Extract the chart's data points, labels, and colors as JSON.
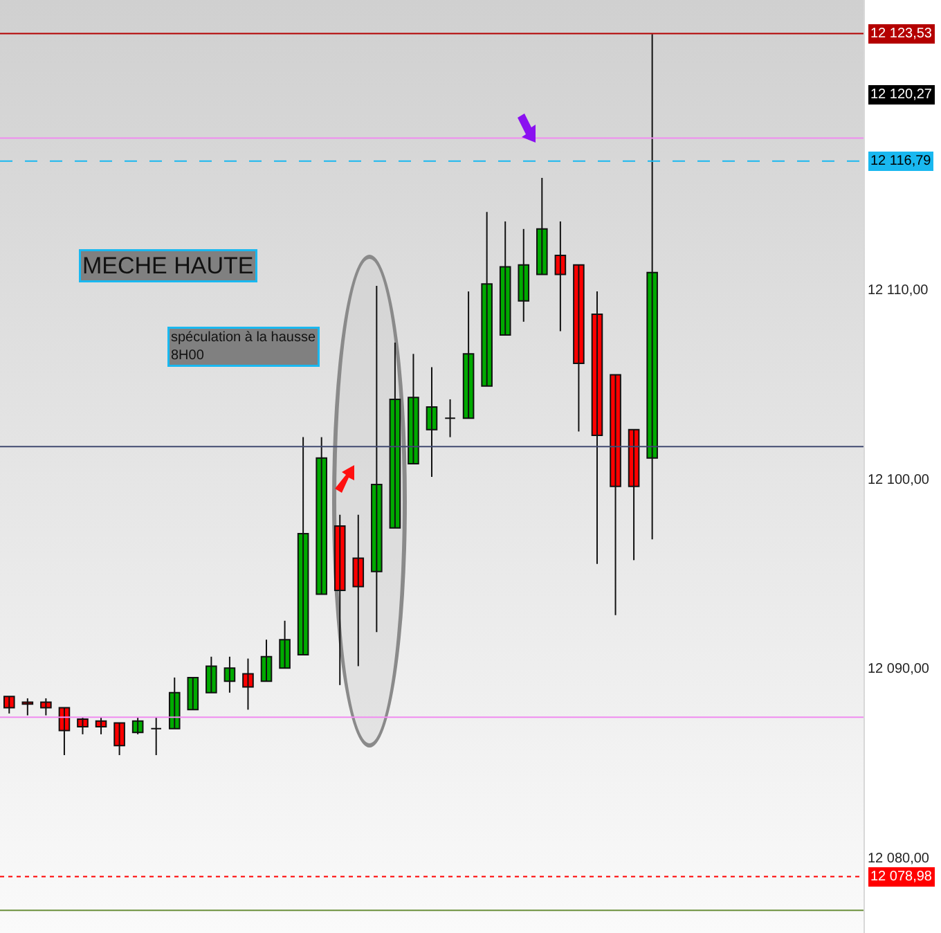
{
  "chart_data": {
    "type": "candlestick",
    "categories": [
      null,
      null,
      null,
      null,
      null,
      null,
      null,
      null,
      null,
      null,
      null,
      null,
      null,
      null,
      null,
      null,
      null,
      null,
      null,
      null,
      null,
      null,
      null,
      null,
      null,
      null,
      null,
      null,
      null,
      null,
      null,
      null,
      null,
      null,
      null,
      null,
      null,
      null,
      null,
      null,
      null,
      null,
      null,
      null,
      null,
      null,
      null
    ],
    "ohlc": [
      [
        12088.5,
        12088.5,
        12087.6,
        12087.9
      ],
      [
        12088.2,
        12088.4,
        12087.5,
        12088.1
      ],
      [
        12088.2,
        12088.4,
        12087.5,
        12087.9
      ],
      [
        12087.9,
        12087.9,
        12085.4,
        12086.7
      ],
      [
        12087.3,
        12087.4,
        12086.5,
        12086.9
      ],
      [
        12087.2,
        12087.4,
        12086.5,
        12086.9
      ],
      [
        12087.1,
        12087.1,
        12085.4,
        12085.9
      ],
      [
        12086.6,
        12087.4,
        12086.5,
        12087.2
      ],
      [
        12086.8,
        12087.4,
        12085.4,
        12086.8
      ],
      [
        12086.8,
        12089.5,
        12086.8,
        12088.7
      ],
      [
        12087.8,
        12089.5,
        12087.8,
        12089.5
      ],
      [
        12088.7,
        12090.6,
        12088.7,
        12090.1
      ],
      [
        12089.3,
        12090.6,
        12088.7,
        12090.0
      ],
      [
        12089.7,
        12090.5,
        12087.8,
        12089.0
      ],
      [
        12089.3,
        12091.5,
        12089.3,
        12090.6
      ],
      [
        12090.0,
        12092.5,
        12090.0,
        12091.5
      ],
      [
        12090.7,
        12102.2,
        12090.7,
        12097.1
      ],
      [
        12093.9,
        12102.2,
        12093.9,
        12101.1
      ],
      [
        12097.5,
        12098.1,
        12089.1,
        12094.1
      ],
      [
        12095.8,
        12098.1,
        12090.1,
        12094.3
      ],
      [
        12095.1,
        12110.2,
        12091.9,
        12099.7
      ],
      [
        12097.4,
        12107.2,
        12097.4,
        12104.2
      ],
      [
        12100.8,
        12106.6,
        12100.8,
        12104.3
      ],
      [
        12102.6,
        12105.9,
        12100.1,
        12103.8
      ],
      [
        12103.2,
        12104.2,
        12102.2,
        12103.2
      ],
      [
        12103.2,
        12109.9,
        12103.2,
        12106.6
      ],
      [
        12104.9,
        12114.1,
        12104.9,
        12110.3
      ],
      [
        12107.6,
        12113.6,
        12107.6,
        12111.2
      ],
      [
        12109.4,
        12113.2,
        12108.3,
        12111.3
      ],
      [
        12110.8,
        12115.9,
        12110.8,
        12113.2
      ],
      [
        12111.8,
        12113.6,
        12107.8,
        12110.8
      ],
      [
        12111.3,
        12111.3,
        12102.5,
        12106.1
      ],
      [
        12108.7,
        12109.9,
        12095.5,
        12102.3
      ],
      [
        12105.5,
        12105.5,
        12092.8,
        12099.6
      ],
      [
        12102.6,
        12102.6,
        12095.7,
        12099.6
      ],
      [
        12101.1,
        12123.5,
        12096.8,
        12110.9
      ],
      null,
      null,
      null,
      null,
      null,
      null,
      null,
      null,
      null,
      null,
      null
    ],
    "colors": [
      "#ff0000",
      "#ff0000",
      "#ff0000",
      "#ff0000",
      "#ff0000",
      "#ff0000",
      "#ff0000",
      "#00aa00",
      "#111111",
      "#00aa00",
      "#00aa00",
      "#00aa00",
      "#00aa00",
      "#ff0000",
      "#00aa00",
      "#00aa00",
      "#00aa00",
      "#00aa00",
      "#ff0000",
      "#ff0000",
      "#00aa00",
      "#00aa00",
      "#00aa00",
      "#00aa00",
      "#111111",
      "#00aa00",
      "#00aa00",
      "#00aa00",
      "#00aa00",
      "#00aa00",
      "#ff0000",
      "#ff0000",
      "#ff0000",
      "#ff0000",
      "#ff0000",
      "#00aa00",
      null,
      null,
      null,
      null,
      null,
      null,
      null,
      null,
      null,
      null,
      null
    ],
    "ylim": [
      12076.0,
      12125.3
    ],
    "yticks": [
      {
        "value": 12080,
        "label": "12 080,00"
      },
      {
        "value": 12090,
        "label": "12 090,00"
      },
      {
        "value": 12100,
        "label": "12 100,00"
      },
      {
        "value": 12110,
        "label": "12 110,00"
      }
    ],
    "tick_labels": "y",
    "ref_lines": [
      {
        "axis": "y",
        "value": 12123.53,
        "label": "12 123,53",
        "color": "#b40000",
        "line_style": "solid"
      },
      {
        "axis": "y",
        "value": 12116.79,
        "label": "12 116,79",
        "color": "#19b8f0",
        "line_style": "dashed"
      },
      {
        "axis": "y",
        "value": 12078.98,
        "label": "12 078,98",
        "color": "#ff0000",
        "line_style": "dotted"
      },
      {
        "axis": "y",
        "value": 12118.0,
        "color": "#f08cf0",
        "line_style": "solid"
      },
      {
        "axis": "y",
        "value": 12087.4,
        "color": "#f08cf0",
        "line_style": "solid"
      },
      {
        "axis": "y",
        "value": 12101.7,
        "color": "#404a70",
        "line_style": "solid"
      },
      {
        "axis": "y",
        "value": 12077.2,
        "color": "#6a8f3a",
        "line_style": "solid"
      }
    ],
    "annotations": [
      "MECHE HAUTE",
      "spéculation à la hausse\n8H00",
      "12 120,27"
    ]
  }
}
